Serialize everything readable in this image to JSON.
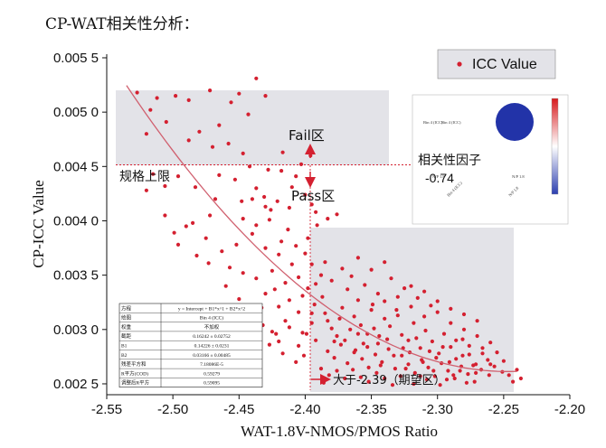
{
  "header": {
    "title": "CP-WAT相关性分析："
  },
  "chart_data": {
    "type": "scatter",
    "title": "",
    "xlabel": "WAT-1.8V-NMOS/PMOS Ratio",
    "ylabel": "CP-ICC Value",
    "xlim": [
      -2.55,
      -2.2
    ],
    "ylim": [
      0.0024,
      0.00545
    ],
    "x_ticks": [
      "-2.55",
      "-2.50",
      "-2.45",
      "-2.40",
      "-2.35",
      "-2.30",
      "-2.25",
      "-2.20"
    ],
    "y_ticks": [
      "0.002 5",
      "0.003 0",
      "0.003 5",
      "0.004 0",
      "0.004 5",
      "0.005 0",
      "0.005 5"
    ],
    "legend": {
      "label": "ICC Value",
      "position": "top-right",
      "color": "#d42030"
    },
    "spec_limit": {
      "y": 0.0045,
      "label": "规格上限"
    },
    "boundary_x": -2.39,
    "fit_curve": {
      "intercept": 0.16242,
      "b1": 0.14226,
      "b2": 0.03166
    },
    "zones": {
      "fail": "Fail区",
      "pass": "Pass区",
      "expect": "大于-2.39（期望区）"
    },
    "correlation": {
      "label": "相关性因子",
      "value": "-0.74",
      "row_label": "Bin 4 (ICC)",
      "col_label": "N/P 1.8"
    },
    "fit_table": [
      [
        "方程",
        "y = Intercept + B1*x^1 + B2*x^2"
      ],
      [
        "绘图",
        "Bin 4 (ICC)"
      ],
      [
        "权重",
        "不加权"
      ],
      [
        "截距",
        "0.16242 ± 0.02752"
      ],
      [
        "B1",
        "0.14226 ± 0.0231"
      ],
      [
        "B2",
        "0.03166 ± 0.00485"
      ],
      [
        "残差平方和",
        "7.18086E-5"
      ],
      [
        "R平方(COD)",
        "0.59279"
      ],
      [
        "调整后R平方",
        "0.59095"
      ]
    ],
    "points": [
      [
        -2.527,
        0.00518
      ],
      [
        -2.512,
        0.00513
      ],
      [
        -2.498,
        0.00515
      ],
      [
        -2.488,
        0.00511
      ],
      [
        -2.472,
        0.0052
      ],
      [
        -2.45,
        0.00517
      ],
      [
        -2.437,
        0.00531
      ],
      [
        -2.43,
        0.00515
      ],
      [
        -2.443,
        0.00498
      ],
      [
        -2.456,
        0.00509
      ],
      [
        -2.48,
        0.00482
      ],
      [
        -2.465,
        0.00488
      ],
      [
        -2.505,
        0.00491
      ],
      [
        -2.517,
        0.00502
      ],
      [
        -2.52,
        0.0048
      ],
      [
        -2.488,
        0.00474
      ],
      [
        -2.47,
        0.00468
      ],
      [
        -2.447,
        0.00462
      ],
      [
        -2.458,
        0.00471
      ],
      [
        -2.515,
        0.00443
      ],
      [
        -2.52,
        0.00428
      ],
      [
        -2.496,
        0.00441
      ],
      [
        -2.506,
        0.00432
      ],
      [
        -2.483,
        0.00431
      ],
      [
        -2.465,
        0.00442
      ],
      [
        -2.453,
        0.00438
      ],
      [
        -2.442,
        0.0045
      ],
      [
        -2.428,
        0.00447
      ],
      [
        -2.418,
        0.00446
      ],
      [
        -2.407,
        0.00441
      ],
      [
        -2.403,
        0.00452
      ],
      [
        -2.396,
        0.0046
      ],
      [
        -2.417,
        0.00463
      ],
      [
        -2.41,
        0.00431
      ],
      [
        -2.437,
        0.0043
      ],
      [
        -2.431,
        0.00422
      ],
      [
        -2.421,
        0.00418
      ],
      [
        -2.412,
        0.00412
      ],
      [
        -2.4,
        0.00424
      ],
      [
        -2.395,
        0.00415
      ],
      [
        -2.392,
        0.00408
      ],
      [
        -2.43,
        0.00413
      ],
      [
        -2.447,
        0.00402
      ],
      [
        -2.437,
        0.00396
      ],
      [
        -2.427,
        0.00401
      ],
      [
        -2.413,
        0.00392
      ],
      [
        -2.398,
        0.00384
      ],
      [
        -2.391,
        0.00396
      ],
      [
        -2.383,
        0.00402
      ],
      [
        -2.376,
        0.00406
      ],
      [
        -2.418,
        0.00381
      ],
      [
        -2.407,
        0.00377
      ],
      [
        -2.42,
        0.00369
      ],
      [
        -2.43,
        0.00375
      ],
      [
        -2.44,
        0.00388
      ],
      [
        -2.452,
        0.00378
      ],
      [
        -2.463,
        0.00372
      ],
      [
        -2.475,
        0.00384
      ],
      [
        -2.49,
        0.00395
      ],
      [
        -2.499,
        0.00389
      ],
      [
        -2.496,
        0.00378
      ],
      [
        -2.482,
        0.00368
      ],
      [
        -2.473,
        0.00361
      ],
      [
        -2.457,
        0.00357
      ],
      [
        -2.447,
        0.00352
      ],
      [
        -2.437,
        0.00347
      ],
      [
        -2.425,
        0.00354
      ],
      [
        -2.415,
        0.00343
      ],
      [
        -2.405,
        0.00348
      ],
      [
        -2.398,
        0.00338
      ],
      [
        -2.392,
        0.00342
      ],
      [
        -2.402,
        0.00331
      ],
      [
        -2.412,
        0.00327
      ],
      [
        -2.42,
        0.00321
      ],
      [
        -2.43,
        0.00333
      ],
      [
        -2.44,
        0.00318
      ],
      [
        -2.45,
        0.00328
      ],
      [
        -2.46,
        0.0034
      ],
      [
        -2.465,
        0.0031
      ],
      [
        -2.455,
        0.00306
      ],
      [
        -2.445,
        0.00301
      ],
      [
        -2.432,
        0.00304
      ],
      [
        -2.422,
        0.00296
      ],
      [
        -2.412,
        0.00302
      ],
      [
        -2.402,
        0.00297
      ],
      [
        -2.395,
        0.00306
      ],
      [
        -2.392,
        0.0029
      ],
      [
        -2.405,
        0.00285
      ],
      [
        -2.417,
        0.00278
      ],
      [
        -2.427,
        0.00286
      ],
      [
        -2.438,
        0.00291
      ],
      [
        -2.45,
        0.00288
      ],
      [
        -2.462,
        0.00293
      ],
      [
        -2.395,
        0.00315
      ],
      [
        -2.393,
        0.00323
      ],
      [
        -2.399,
        0.00296
      ],
      [
        -2.405,
        0.00316
      ],
      [
        -2.385,
        0.00315
      ],
      [
        -2.38,
        0.00301
      ],
      [
        -2.376,
        0.00294
      ],
      [
        -2.372,
        0.0032
      ],
      [
        -2.368,
        0.00337
      ],
      [
        -2.363,
        0.00312
      ],
      [
        -2.358,
        0.00304
      ],
      [
        -2.353,
        0.00296
      ],
      [
        -2.349,
        0.00323
      ],
      [
        -2.345,
        0.00287
      ],
      [
        -2.34,
        0.0031
      ],
      [
        -2.336,
        0.00303
      ],
      [
        -2.331,
        0.00318
      ],
      [
        -2.327,
        0.00295
      ],
      [
        -2.322,
        0.0029
      ],
      [
        -2.318,
        0.00306
      ],
      [
        -2.313,
        0.00283
      ],
      [
        -2.309,
        0.00299
      ],
      [
        -2.304,
        0.00289
      ],
      [
        -2.299,
        0.00278
      ],
      [
        -2.295,
        0.00296
      ],
      [
        -2.29,
        0.00284
      ],
      [
        -2.286,
        0.00273
      ],
      [
        -2.281,
        0.00291
      ],
      [
        -2.276,
        0.00277
      ],
      [
        -2.271,
        0.00268
      ],
      [
        -2.266,
        0.00283
      ],
      [
        -2.262,
        0.00272
      ],
      [
        -2.257,
        0.00266
      ],
      [
        -2.251,
        0.00261
      ],
      [
        -2.246,
        0.00258
      ],
      [
        -2.243,
        0.00252
      ],
      [
        -2.383,
        0.0028
      ],
      [
        -2.378,
        0.00274
      ],
      [
        -2.373,
        0.00286
      ],
      [
        -2.368,
        0.00269
      ],
      [
        -2.362,
        0.00281
      ],
      [
        -2.357,
        0.00273
      ],
      [
        -2.352,
        0.00265
      ],
      [
        -2.347,
        0.00277
      ],
      [
        -2.342,
        0.0027
      ],
      [
        -2.337,
        0.00282
      ],
      [
        -2.332,
        0.00264
      ],
      [
        -2.327,
        0.00276
      ],
      [
        -2.322,
        0.00268
      ],
      [
        -2.317,
        0.0026
      ],
      [
        -2.312,
        0.00272
      ],
      [
        -2.307,
        0.00265
      ],
      [
        -2.302,
        0.00257
      ],
      [
        -2.297,
        0.00269
      ],
      [
        -2.292,
        0.00262
      ],
      [
        -2.287,
        0.00255
      ],
      [
        -2.282,
        0.00266
      ],
      [
        -2.277,
        0.00259
      ],
      [
        -2.272,
        0.00252
      ],
      [
        -2.267,
        0.00263
      ],
      [
        -2.388,
        0.00264
      ],
      [
        -2.382,
        0.00258
      ],
      [
        -2.376,
        0.00262
      ],
      [
        -2.37,
        0.00255
      ],
      [
        -2.364,
        0.00263
      ],
      [
        -2.358,
        0.00256
      ],
      [
        -2.352,
        0.00252
      ],
      [
        -2.346,
        0.0026
      ],
      [
        -2.34,
        0.00255
      ],
      [
        -2.334,
        0.00249
      ],
      [
        -2.328,
        0.00257
      ],
      [
        -2.318,
        0.0025
      ],
      [
        -2.308,
        0.00254
      ],
      [
        -2.298,
        0.00249
      ],
      [
        -2.288,
        0.00258
      ],
      [
        -2.278,
        0.00251
      ],
      [
        -2.365,
        0.00349
      ],
      [
        -2.355,
        0.00341
      ],
      [
        -2.345,
        0.00333
      ],
      [
        -2.335,
        0.00347
      ],
      [
        -2.325,
        0.00338
      ],
      [
        -2.315,
        0.00329
      ],
      [
        -2.305,
        0.00322
      ],
      [
        -2.36,
        0.00327
      ],
      [
        -2.35,
        0.00318
      ],
      [
        -2.34,
        0.00326
      ],
      [
        -2.33,
        0.00313
      ],
      [
        -2.32,
        0.00321
      ],
      [
        -2.31,
        0.00312
      ],
      [
        -2.3,
        0.00316
      ],
      [
        -2.29,
        0.00306
      ],
      [
        -2.28,
        0.003
      ],
      [
        -2.27,
        0.00294
      ],
      [
        -2.26,
        0.00288
      ],
      [
        -2.255,
        0.00279
      ],
      [
        -2.25,
        0.00271
      ],
      [
        -2.38,
        0.00345
      ],
      [
        -2.372,
        0.00356
      ],
      [
        -2.387,
        0.0033
      ],
      [
        -2.383,
        0.00308
      ],
      [
        -2.37,
        0.0029
      ],
      [
        -2.36,
        0.00296
      ],
      [
        -2.348,
        0.00301
      ],
      [
        -2.338,
        0.00291
      ],
      [
        -2.326,
        0.00283
      ],
      [
        -2.316,
        0.00292
      ],
      [
        -2.306,
        0.0028
      ],
      [
        -2.296,
        0.00284
      ],
      [
        -2.286,
        0.0029
      ],
      [
        -2.276,
        0.00285
      ],
      [
        -2.266,
        0.00278
      ],
      [
        -2.26,
        0.00268
      ],
      [
        -2.24,
        0.00263
      ],
      [
        -2.237,
        0.00255
      ],
      [
        -2.374,
        0.0031
      ],
      [
        -2.366,
        0.003
      ],
      [
        -2.356,
        0.00287
      ],
      [
        -2.344,
        0.00294
      ],
      [
        -2.333,
        0.00276
      ],
      [
        -2.321,
        0.00279
      ],
      [
        -2.311,
        0.0027
      ],
      [
        -2.301,
        0.00274
      ],
      [
        -2.291,
        0.0027
      ],
      [
        -2.281,
        0.00276
      ],
      [
        -2.271,
        0.0026
      ],
      [
        -2.261,
        0.00258
      ],
      [
        -2.386,
        0.00251
      ],
      [
        -2.378,
        0.00289
      ],
      [
        -2.363,
        0.00279
      ],
      [
        -2.353,
        0.00284
      ],
      [
        -2.343,
        0.00267
      ],
      [
        -2.324,
        0.00264
      ],
      [
        -2.313,
        0.00257
      ],
      [
        -2.303,
        0.00262
      ],
      [
        -2.293,
        0.00254
      ],
      [
        -2.283,
        0.00262
      ],
      [
        -2.273,
        0.00267
      ],
      [
        -2.33,
        0.0033
      ],
      [
        -2.32,
        0.0034
      ],
      [
        -2.31,
        0.00335
      ],
      [
        -2.3,
        0.00326
      ],
      [
        -2.29,
        0.00319
      ],
      [
        -2.28,
        0.00314
      ],
      [
        -2.27,
        0.00308
      ],
      [
        -2.35,
        0.00355
      ],
      [
        -2.34,
        0.00362
      ],
      [
        -2.36,
        0.00366
      ],
      [
        -2.385,
        0.00362
      ],
      [
        -2.41,
        0.0036
      ],
      [
        -2.423,
        0.00337
      ],
      [
        -2.433,
        0.0032
      ],
      [
        -2.443,
        0.00312
      ],
      [
        -2.415,
        0.00308
      ],
      [
        -2.425,
        0.00298
      ],
      [
        -2.407,
        0.0027
      ],
      [
        -2.401,
        0.00276
      ],
      [
        -2.42,
        0.00289
      ],
      [
        -2.472,
        0.00405
      ],
      [
        -2.485,
        0.00398
      ],
      [
        -2.468,
        0.0042
      ],
      [
        -2.44,
        0.0042
      ],
      [
        -2.426,
        0.0041
      ],
      [
        -2.448,
        0.00418
      ],
      [
        -2.506,
        0.00405
      ],
      [
        -2.388,
        0.0035
      ],
      [
        -2.395,
        0.0036
      ],
      [
        -2.4,
        0.0037
      ]
    ]
  }
}
